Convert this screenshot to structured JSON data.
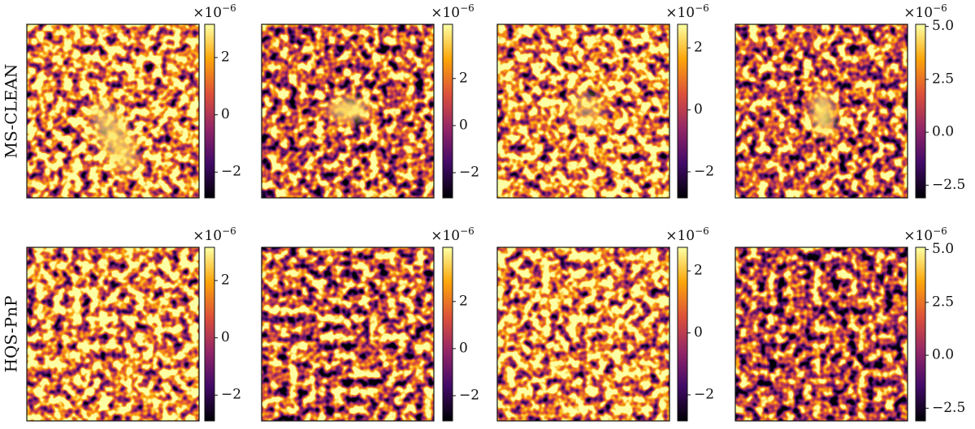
{
  "rows": [
    {
      "label": "MS-CLEAN"
    },
    {
      "label": "HQS-PnP"
    }
  ],
  "colorbars": [
    {
      "multiplier": {
        "base": "×10",
        "exponent": "−6"
      },
      "clim": [
        -2.9,
        3.16
      ],
      "ticks": [
        {
          "value": -2,
          "label": "−2"
        },
        0,
        2
      ]
    },
    {
      "multiplier": {
        "base": "×10",
        "exponent": "−6"
      },
      "clim": [
        -3.07,
        4.3
      ],
      "ticks": [
        {
          "value": -2,
          "label": "−2"
        },
        0,
        2
      ]
    },
    {
      "multiplier": {
        "base": "×10",
        "exponent": "−6"
      },
      "clim": [
        -2.84,
        2.76
      ],
      "ticks": [
        {
          "value": -2,
          "label": "−2"
        },
        0,
        2
      ]
    },
    {
      "multiplier": {
        "base": "×10",
        "exponent": "−6"
      },
      "clim": [
        -3.1,
        5.1
      ],
      "ticks": [
        {
          "value": -2.5,
          "label": "−2.5"
        },
        {
          "value": 0,
          "label": "0.0"
        },
        {
          "value": 2.5,
          "label": "2.5"
        },
        {
          "value": 5,
          "label": "5.0"
        }
      ]
    }
  ]
}
